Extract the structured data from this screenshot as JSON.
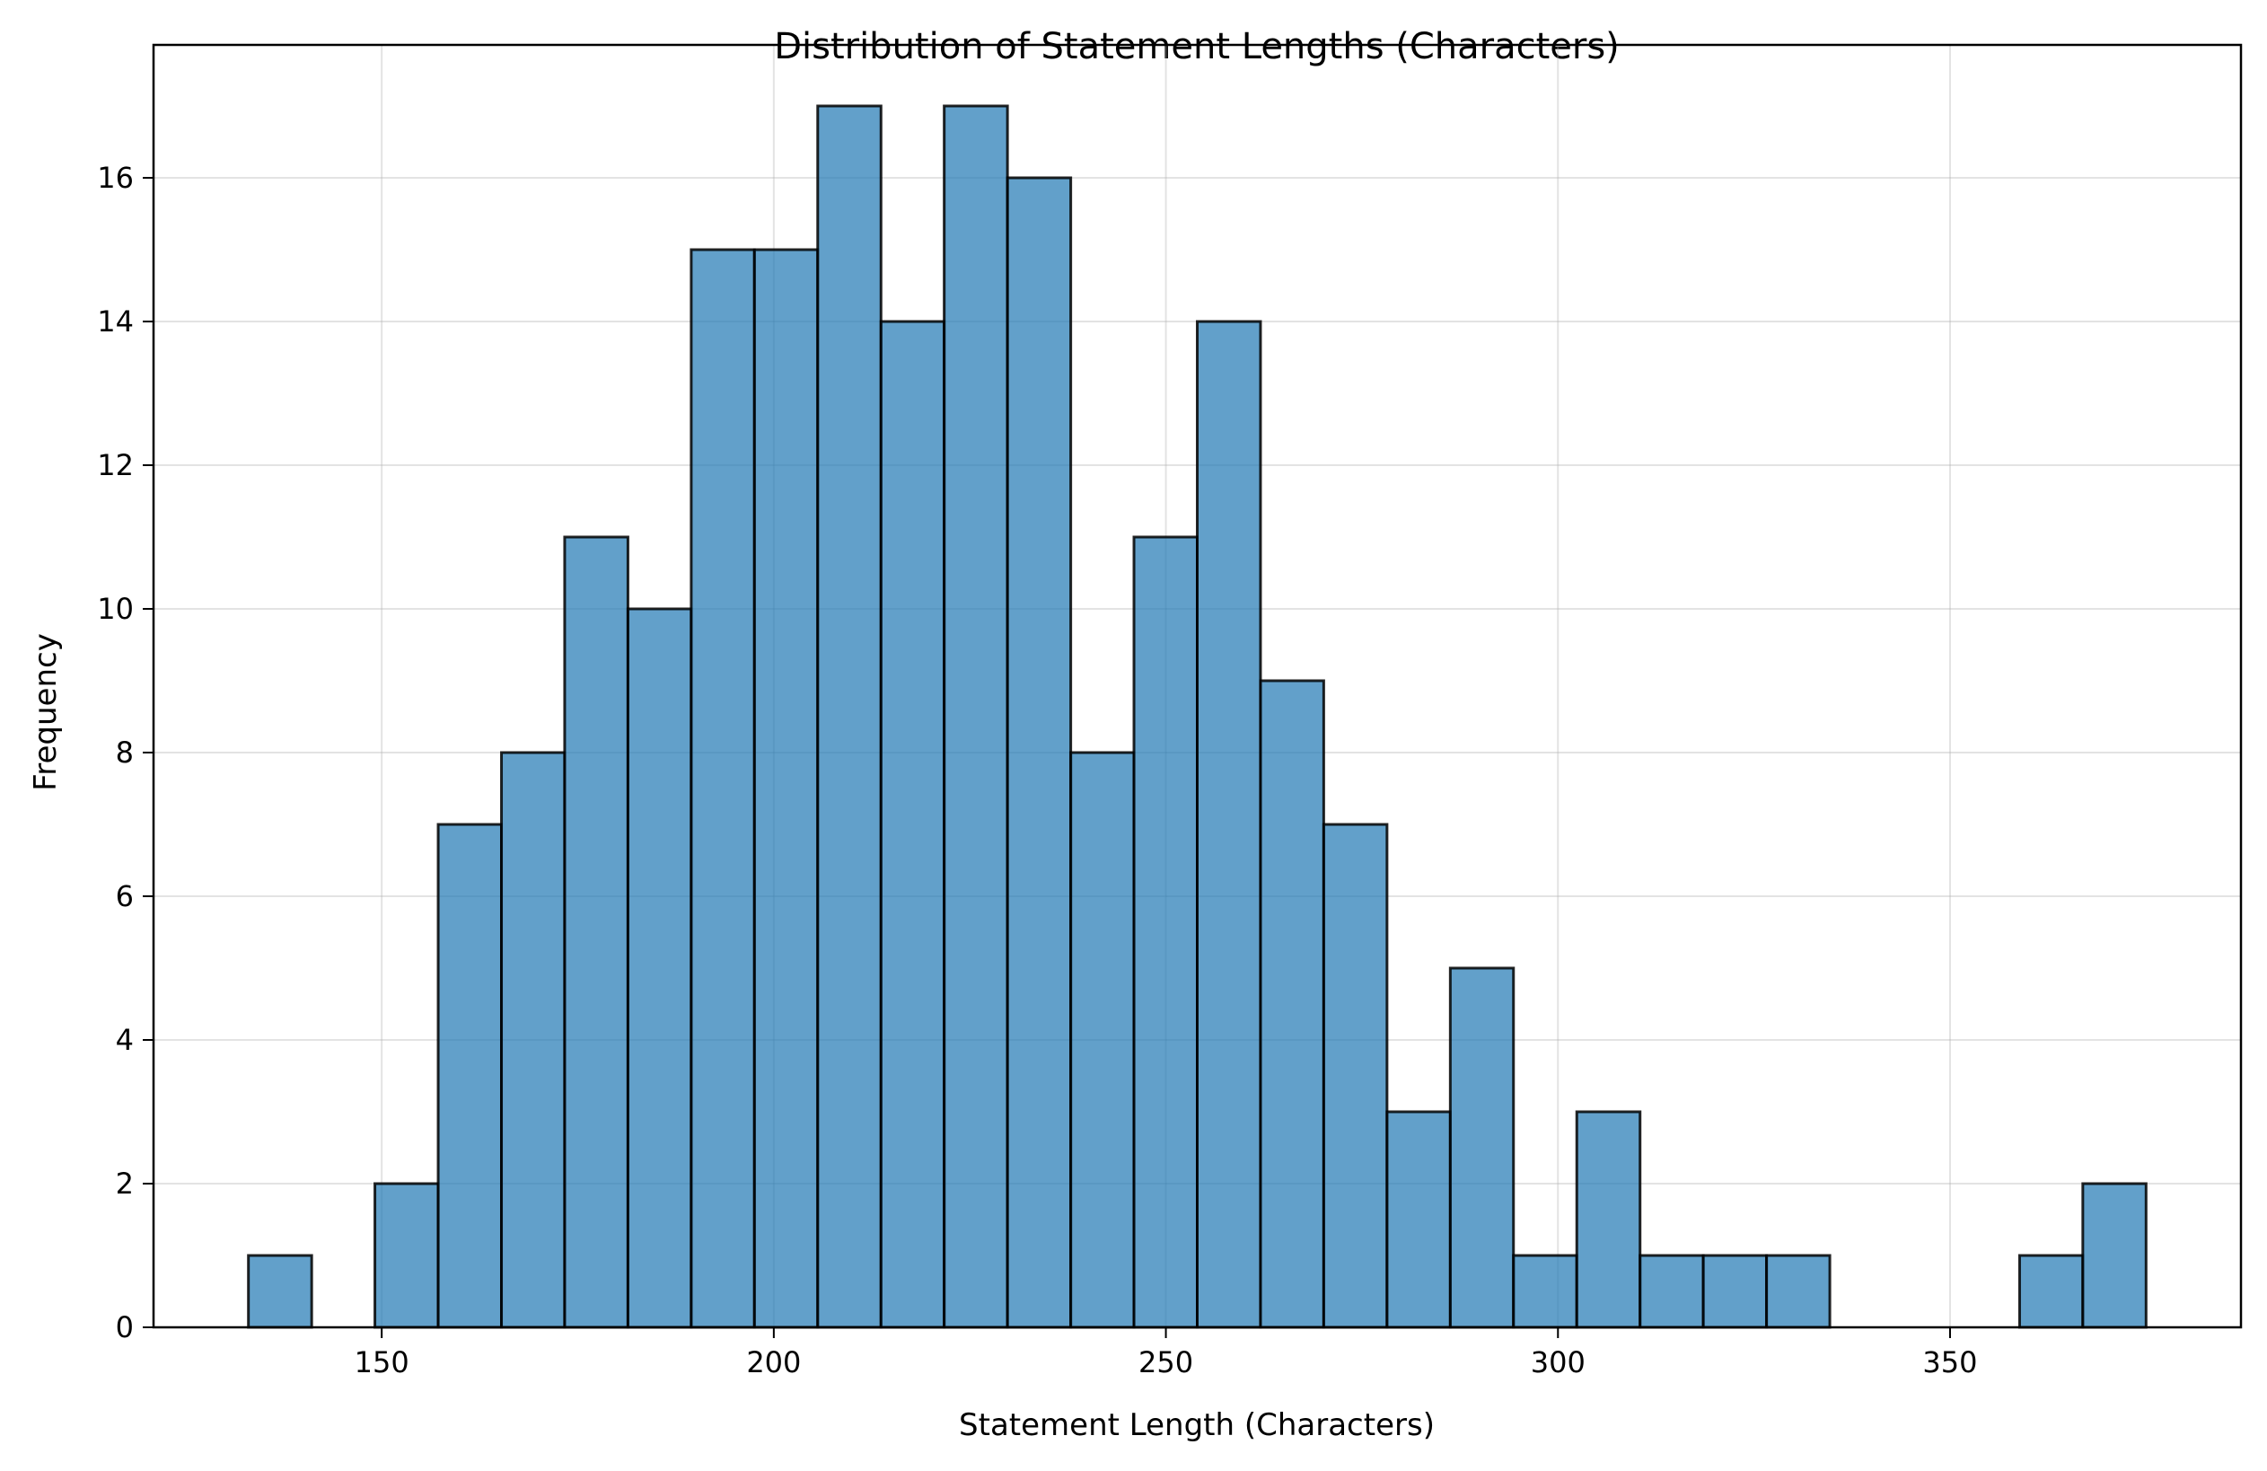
{
  "chart_data": {
    "type": "bar",
    "title": "Distribution of Statement Lengths (Characters)",
    "xlabel": "Statement Length (Characters)",
    "ylabel": "Frequency",
    "bin_edges": [
      133,
      141.07,
      149.13,
      157.2,
      165.27,
      173.33,
      181.4,
      189.47,
      197.53,
      205.6,
      213.67,
      221.73,
      229.8,
      237.87,
      245.93,
      254,
      262.07,
      270.13,
      278.2,
      286.27,
      294.33,
      302.4,
      310.47,
      318.53,
      326.6,
      334.67,
      342.73,
      350.8,
      358.87,
      366.93,
      375
    ],
    "values": [
      1,
      0,
      2,
      7,
      8,
      11,
      10,
      15,
      15,
      17,
      14,
      17,
      16,
      8,
      11,
      14,
      9,
      7,
      3,
      5,
      1,
      3,
      1,
      1,
      1,
      0,
      0,
      0,
      1,
      2
    ],
    "xlim": [
      120.9,
      387.1
    ],
    "ylim": [
      0,
      17.85
    ],
    "xticks": [
      150,
      200,
      250,
      300,
      350
    ],
    "yticks": [
      0,
      2,
      4,
      6,
      8,
      10,
      12,
      14,
      16
    ],
    "grid": true,
    "color": "#1f77b4",
    "edgecolor": "#000000"
  }
}
